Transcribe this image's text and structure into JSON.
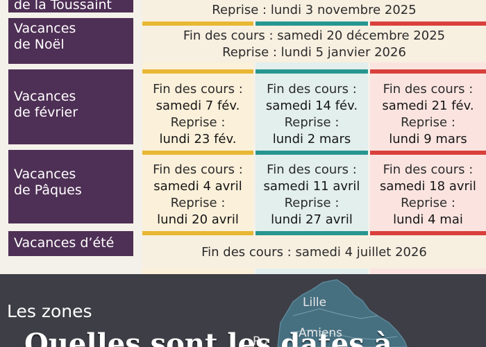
{
  "rows": {
    "toussaint": {
      "label_line2": "de la Toussaint",
      "reprise": "Reprise : lundi 3 novembre 2025"
    },
    "noel": {
      "label_line1": "Vacances",
      "label_line2": "de Noël",
      "fin": "Fin des cours : samedi 20 décembre 2025",
      "reprise": "Reprise : lundi 5 janvier 2026"
    },
    "fevrier": {
      "label_line1": "Vacances",
      "label_line2": "de février",
      "zones": [
        {
          "fin_label": "Fin des cours :",
          "fin_date": "samedi 7 fév.",
          "rep_label": "Reprise :",
          "rep_date": "lundi 23 fév."
        },
        {
          "fin_label": "Fin des cours :",
          "fin_date": "samedi 14 fév.",
          "rep_label": "Reprise :",
          "rep_date": "lundi 2 mars"
        },
        {
          "fin_label": "Fin des cours :",
          "fin_date": "samedi 21 fév.",
          "rep_label": "Reprise :",
          "rep_date": "lundi 9 mars"
        }
      ]
    },
    "paques": {
      "label_line1": "Vacances",
      "label_line2": "de Pâques",
      "zones": [
        {
          "fin_label": "Fin des cours :",
          "fin_date": "samedi 4 avril",
          "rep_label": "Reprise :",
          "rep_date": "lundi 20 avril"
        },
        {
          "fin_label": "Fin des cours :",
          "fin_date": "samedi 11 avril",
          "rep_label": "Reprise :",
          "rep_date": "lundi 27 avril"
        },
        {
          "fin_label": "Fin des cours :",
          "fin_date": "samedi 18 avril",
          "rep_label": "Reprise :",
          "rep_date": "lundi 4 mai"
        }
      ]
    },
    "ete": {
      "label": "Vacances d’été",
      "fin": "Fin des cours : samedi 4 juillet 2026"
    }
  },
  "footer": {
    "zones_title": "Les zones",
    "headline": "Quelles sont les dates à",
    "map_labels": {
      "lille": "Lille",
      "amiens": "Amiens",
      "rouen": "Ro"
    }
  },
  "colors": {
    "zone_a": "#e8b733",
    "zone_b": "#27968f",
    "zone_c": "#d9403b",
    "label_bg": "#4e2f55"
  }
}
